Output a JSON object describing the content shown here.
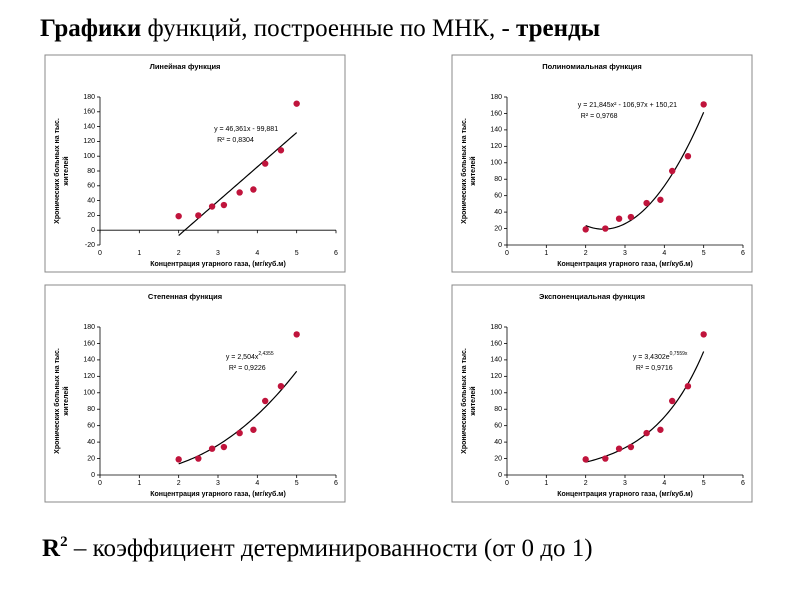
{
  "title_parts": [
    "Графики",
    " функций, построенные по МНК, - ",
    "тренды"
  ],
  "footer": {
    "symbol": "R",
    "sup": "2",
    "text": " – коэффициент детерминированности (от 0 до 1)"
  },
  "chart_data": [
    {
      "type": "scatter",
      "title": "Линейная функция",
      "xlabel": "Концентрация угарного газа, (мг/куб.м)",
      "ylabel": [
        "Хронических больных на тыс.",
        "жителей"
      ],
      "x": [
        2,
        2.5,
        2.85,
        3.15,
        3.55,
        3.9,
        4.2,
        4.6,
        5
      ],
      "values": [
        19,
        20,
        32,
        34,
        51,
        55,
        90,
        108,
        171
      ],
      "color": "#c0143c",
      "xlim": [
        0,
        6
      ],
      "xticks": [
        0,
        1,
        2,
        3,
        4,
        5,
        6
      ],
      "ylim": [
        -20,
        180
      ],
      "yticks": [
        -20,
        0,
        20,
        40,
        60,
        80,
        100,
        120,
        140,
        160,
        180
      ],
      "trendline": {
        "kind": "linear",
        "coefficients": [
          46.361,
          -99.881
        ],
        "equation": "y = 46,361x - 99,881",
        "equation_sup": "",
        "r2": "R² = 0,8304"
      }
    },
    {
      "type": "scatter",
      "title": "Полиномиальная функция",
      "xlabel": "Концентрация угарного газа, (мг/куб.м)",
      "ylabel": [
        "Хронических больных на тыс.",
        "жителей"
      ],
      "x": [
        2,
        2.5,
        2.85,
        3.15,
        3.55,
        3.9,
        4.2,
        4.6,
        5
      ],
      "values": [
        19,
        20,
        32,
        34,
        51,
        55,
        90,
        108,
        171
      ],
      "color": "#c0143c",
      "xlim": [
        0,
        6
      ],
      "xticks": [
        0,
        1,
        2,
        3,
        4,
        5,
        6
      ],
      "ylim": [
        0,
        180
      ],
      "yticks": [
        0,
        20,
        40,
        60,
        80,
        100,
        120,
        140,
        160,
        180
      ],
      "trendline": {
        "kind": "polynomial",
        "coefficients": [
          21.845,
          -106.97,
          150.21
        ],
        "equation": "y = 21,845x² - 106,97x + 150,21",
        "equation_sup": "",
        "r2": "R² = 0,9768"
      }
    },
    {
      "type": "scatter",
      "title": "Степенная функция",
      "xlabel": "Концентрация угарного газа, (мг/куб.м)",
      "ylabel": [
        "Хронических больных на тыс.",
        "жителей"
      ],
      "x": [
        2,
        2.5,
        2.85,
        3.15,
        3.55,
        3.9,
        4.2,
        4.6,
        5
      ],
      "values": [
        19,
        20,
        32,
        34,
        51,
        55,
        90,
        108,
        171
      ],
      "color": "#c0143c",
      "xlim": [
        0,
        6
      ],
      "xticks": [
        0,
        1,
        2,
        3,
        4,
        5,
        6
      ],
      "ylim": [
        0,
        180
      ],
      "yticks": [
        0,
        20,
        40,
        60,
        80,
        100,
        120,
        140,
        160,
        180
      ],
      "trendline": {
        "kind": "power",
        "coefficients": [
          2.504,
          2.4355
        ],
        "equation": "y = 2,504x",
        "equation_sup": "2,4355",
        "r2": "R² = 0,9226"
      }
    },
    {
      "type": "scatter",
      "title": "Экспоненциальная функция",
      "xlabel": "Концентрация угарного газа, (мг/куб.м)",
      "ylabel": [
        "Хронических больных на тыс.",
        "жителей"
      ],
      "x": [
        2,
        2.5,
        2.85,
        3.15,
        3.55,
        3.9,
        4.2,
        4.6,
        5
      ],
      "values": [
        19,
        20,
        32,
        34,
        51,
        55,
        90,
        108,
        171
      ],
      "color": "#c0143c",
      "xlim": [
        0,
        6
      ],
      "xticks": [
        0,
        1,
        2,
        3,
        4,
        5,
        6
      ],
      "ylim": [
        0,
        180
      ],
      "yticks": [
        0,
        20,
        40,
        60,
        80,
        100,
        120,
        140,
        160,
        180
      ],
      "trendline": {
        "kind": "exponential",
        "coefficients": [
          3.4302,
          0.7559
        ],
        "equation": "y = 3,4302e",
        "equation_sup": "0,7559x",
        "r2": "R² = 0,9716"
      }
    }
  ]
}
